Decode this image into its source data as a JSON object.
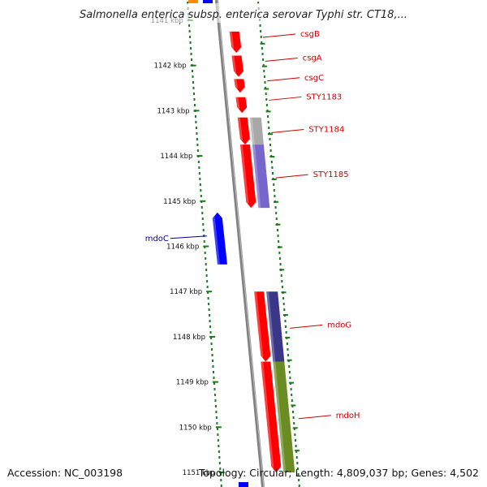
{
  "title": "Salmonella enterica subsp. enterica serovar Typhi str. CT18,...",
  "footer": {
    "accession": "Accession: NC_003198",
    "summary": "Topology: Circular; Length: 4,809,037 bp; Genes: 4,502"
  },
  "axis": {
    "unit": "kbp",
    "ticks": [
      "1141 kbp",
      "1142 kbp",
      "1143 kbp",
      "1144 kbp",
      "1145 kbp",
      "1146 kbp",
      "1147 kbp",
      "1148 kbp",
      "1149 kbp",
      "1150 kbp",
      "1151 kbp"
    ],
    "range_kbp": [
      1141,
      1151
    ]
  },
  "colors": {
    "forward_cds": "#ff0000",
    "reverse_cds": "#0000ff",
    "forward_label": "#cc0000",
    "reverse_label": "#000099",
    "backbone": "#808080",
    "ticks": "#1a7a1a",
    "cog_grey": "#a8a8a8",
    "cog_purple": "#7766cc",
    "cog_darkpurple": "#3a3688",
    "cog_olive": "#6b8c23",
    "cog_orange": "#ff8c00"
  },
  "genes": [
    {
      "label": "csgB",
      "start_kbp": 1141.25,
      "end_kbp": 1141.72,
      "strand": "+"
    },
    {
      "label": "csgA",
      "start_kbp": 1141.78,
      "end_kbp": 1142.25,
      "strand": "+"
    },
    {
      "label": "csgC",
      "start_kbp": 1142.3,
      "end_kbp": 1142.6,
      "strand": "+"
    },
    {
      "label": "STY1183",
      "start_kbp": 1142.7,
      "end_kbp": 1143.05,
      "strand": "+"
    },
    {
      "label": "STY1184",
      "start_kbp": 1143.15,
      "end_kbp": 1143.75,
      "strand": "+",
      "cog_color": "cog_grey"
    },
    {
      "label": "STY1185",
      "start_kbp": 1143.75,
      "end_kbp": 1145.15,
      "strand": "+",
      "cog_color": "cog_purple"
    },
    {
      "label": "mdoC",
      "start_kbp": 1145.25,
      "end_kbp": 1146.4,
      "strand": "-"
    },
    {
      "label": "mdoG",
      "start_kbp": 1147.0,
      "end_kbp": 1148.55,
      "strand": "+",
      "cog_color": "cog_darkpurple"
    },
    {
      "label": "mdoH",
      "start_kbp": 1148.55,
      "end_kbp": 1151.0,
      "strand": "+",
      "cog_color": "cog_olive"
    }
  ]
}
